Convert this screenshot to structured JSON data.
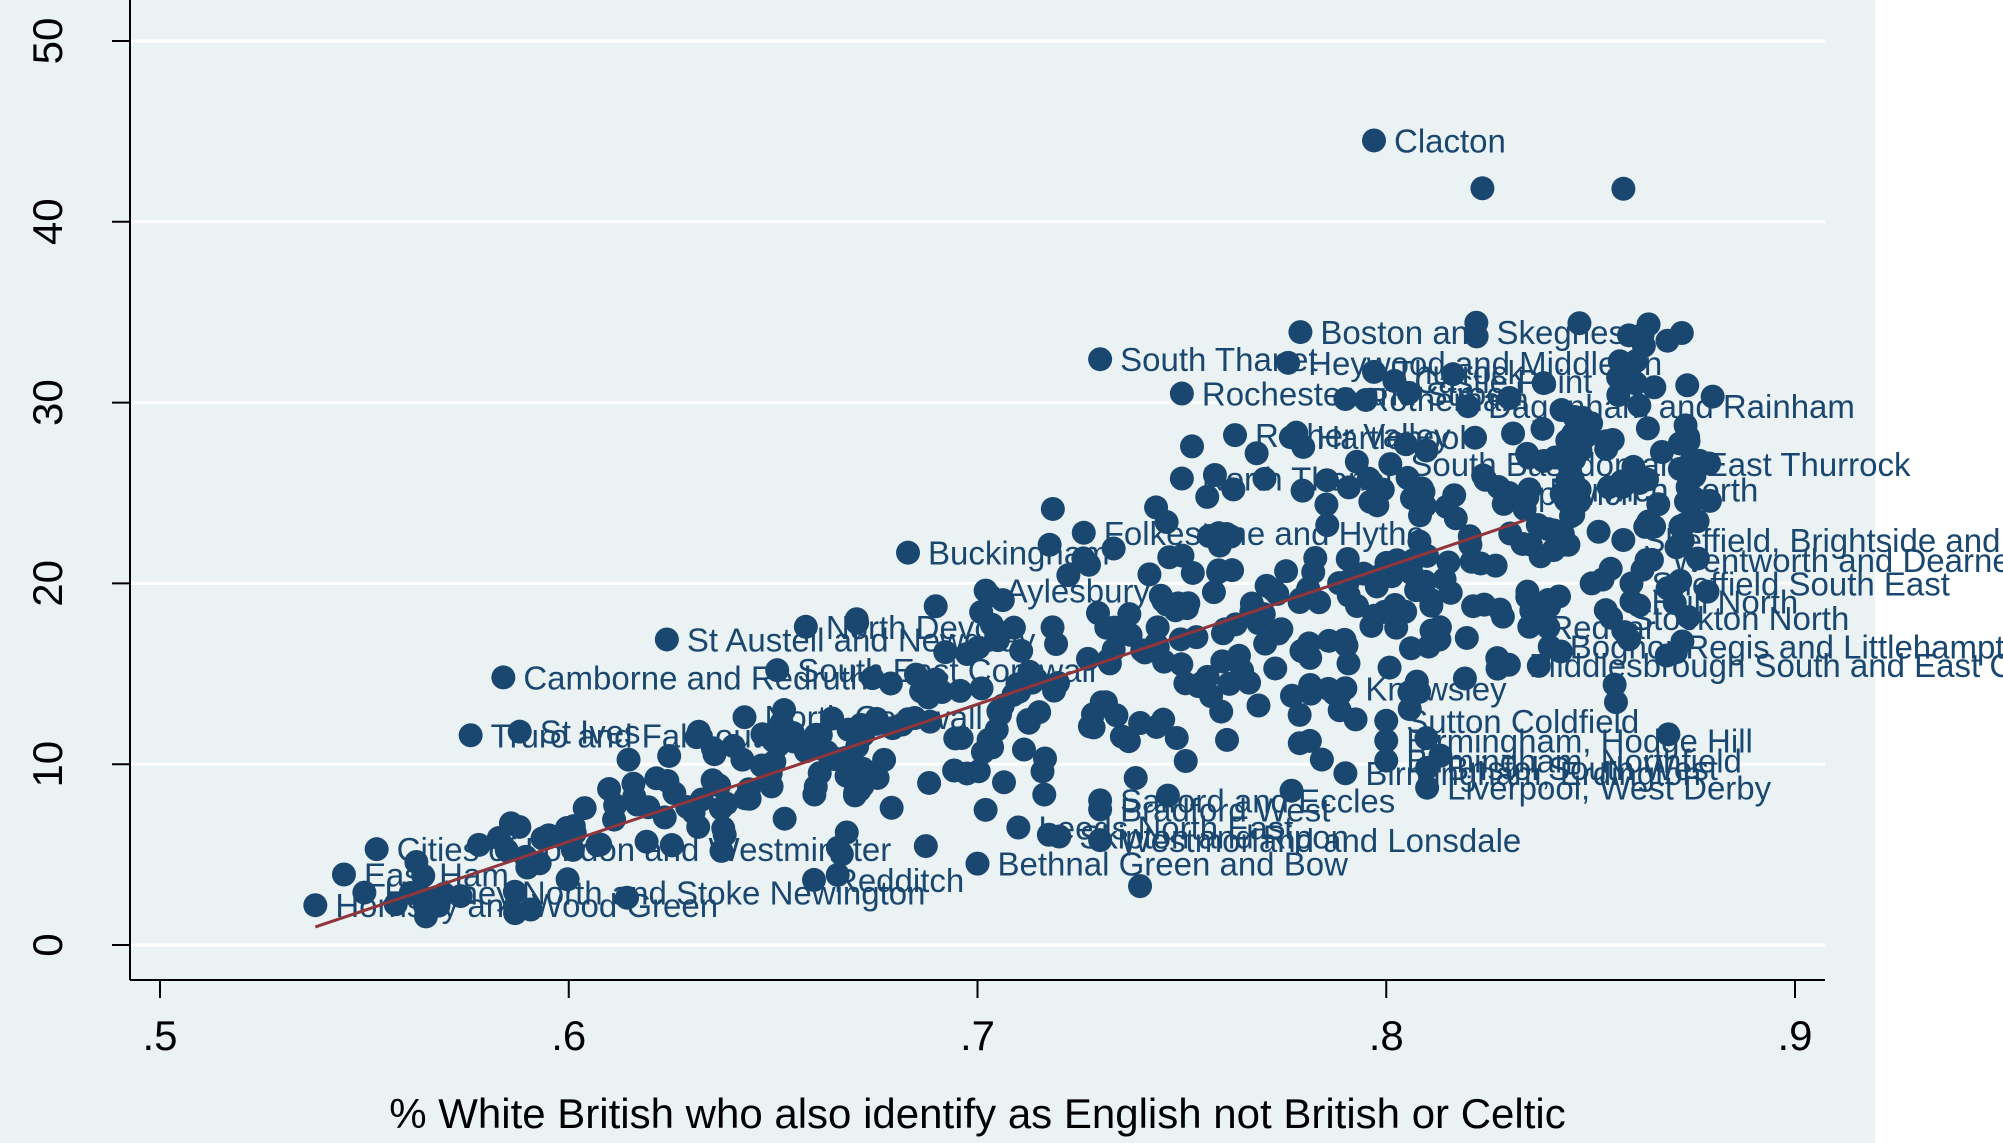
{
  "chart_data": {
    "type": "scatter",
    "title": "",
    "xlabel": "% White British who also identify as English not British or Celtic",
    "ylabel": "",
    "xlim": [
      0.49,
      0.91
    ],
    "ylim": [
      -2,
      52
    ],
    "x_ticks": [
      0.5,
      0.6,
      0.7,
      0.8,
      0.9
    ],
    "x_tick_labels": [
      ".5",
      ".6",
      ".7",
      ".8",
      ".9"
    ],
    "y_ticks": [
      0,
      10,
      20,
      30,
      40,
      50
    ],
    "y_tick_labels": [
      "0",
      "10",
      "20",
      "30",
      "40",
      "50"
    ],
    "grid": true,
    "colors": {
      "plot_background": "#eaf2f3",
      "points": "#1a476f",
      "fit_line": "#90353b",
      "gridline": "#ffffff"
    },
    "fit_line": {
      "x": [
        0.538,
        0.834
      ],
      "y": [
        1.0,
        23.5
      ]
    },
    "labeled_points": [
      {
        "label": "Clacton",
        "x": 0.797,
        "y": 44.5
      },
      {
        "label": "Boston and Skegness",
        "x": 0.779,
        "y": 33.9
      },
      {
        "label": "South Thanet",
        "x": 0.73,
        "y": 32.4
      },
      {
        "label": "Heywood and Middleton",
        "x": 0.776,
        "y": 32.2
      },
      {
        "label": "Thurrock",
        "x": 0.797,
        "y": 31.7
      },
      {
        "label": "Castle Point",
        "x": 0.802,
        "y": 31.2
      },
      {
        "label": "Rochester and Strood",
        "x": 0.75,
        "y": 30.5
      },
      {
        "label": "Rotherham",
        "x": 0.79,
        "y": 30.2
      },
      {
        "label": "Dagenham and Rainham",
        "x": 0.82,
        "y": 29.8
      },
      {
        "label": "Rother Valley",
        "x": 0.763,
        "y": 28.2
      },
      {
        "label": "Hartlepool",
        "x": 0.778,
        "y": 28.1
      },
      {
        "label": "South Basildon and East Thurrock",
        "x": 0.801,
        "y": 26.6
      },
      {
        "label": "North Thanet",
        "x": 0.75,
        "y": 25.8
      },
      {
        "label": "Ipswich",
        "x": 0.83,
        "y": 25.0
      },
      {
        "label": "Norwich North",
        "x": 0.835,
        "y": 25.2
      },
      {
        "label": "Sheffield, Brightside and Hillsborough",
        "x": 0.858,
        "y": 22.4
      },
      {
        "label": "Sheffield South East",
        "x": 0.86,
        "y": 20.0
      },
      {
        "label": "Wentworth and Dearne",
        "x": 0.865,
        "y": 21.3
      },
      {
        "label": "Hull North",
        "x": 0.86,
        "y": 19.0
      },
      {
        "label": "Stockton North",
        "x": 0.855,
        "y": 18.1
      },
      {
        "label": "Folkestone and Hythe",
        "x": 0.726,
        "y": 22.8
      },
      {
        "label": "Buckingham",
        "x": 0.683,
        "y": 21.7
      },
      {
        "label": "Aylesbury",
        "x": 0.702,
        "y": 19.6
      },
      {
        "label": "North Devon",
        "x": 0.658,
        "y": 17.6
      },
      {
        "label": "St Austell and Newquay",
        "x": 0.624,
        "y": 16.9
      },
      {
        "label": "Camborne and Redruth",
        "x": 0.584,
        "y": 14.8
      },
      {
        "label": "South East Cornwall",
        "x": 0.651,
        "y": 15.2
      },
      {
        "label": "North Cornwall",
        "x": 0.643,
        "y": 12.6
      },
      {
        "label": "St Ives",
        "x": 0.588,
        "y": 11.8
      },
      {
        "label": "Truro and Falmouth",
        "x": 0.576,
        "y": 11.6
      },
      {
        "label": "Bognor Regis and Littlehampton",
        "x": 0.84,
        "y": 16.5
      },
      {
        "label": "Redcar",
        "x": 0.835,
        "y": 17.6
      },
      {
        "label": "Middlesbrough South and East Cleveland",
        "x": 0.83,
        "y": 15.5
      },
      {
        "label": "Knowsley",
        "x": 0.79,
        "y": 14.2
      },
      {
        "label": "Sutton Coldfield",
        "x": 0.8,
        "y": 12.4
      },
      {
        "label": "Birmingham, Hodge Hill",
        "x": 0.8,
        "y": 11.3
      },
      {
        "label": "Birmingham, Northfield",
        "x": 0.8,
        "y": 10.2
      },
      {
        "label": "Bristol South West",
        "x": 0.81,
        "y": 9.8
      },
      {
        "label": "Liverpool, West Derby",
        "x": 0.81,
        "y": 8.7
      },
      {
        "label": "Birmingham, Erdington",
        "x": 0.79,
        "y": 9.5
      },
      {
        "label": "Salford and Eccles",
        "x": 0.73,
        "y": 8.0
      },
      {
        "label": "Bradford West",
        "x": 0.73,
        "y": 7.5
      },
      {
        "label": "Leeds North East",
        "x": 0.71,
        "y": 6.5
      },
      {
        "label": "Skipton and Ripon",
        "x": 0.72,
        "y": 6.0
      },
      {
        "label": "Westmorland and Lonsdale",
        "x": 0.73,
        "y": 5.8
      },
      {
        "label": "Bethnal Green and Bow",
        "x": 0.7,
        "y": 4.5
      },
      {
        "label": "Redditch",
        "x": 0.66,
        "y": 3.6
      },
      {
        "label": "Cities of London and Westminster",
        "x": 0.553,
        "y": 5.3
      },
      {
        "label": "East Ham",
        "x": 0.545,
        "y": 3.9
      },
      {
        "label": "Hornsey and Wood Green",
        "x": 0.538,
        "y": 2.2
      },
      {
        "label": "Hackney North and Stoke Newington",
        "x": 0.55,
        "y": 2.9
      }
    ]
  }
}
